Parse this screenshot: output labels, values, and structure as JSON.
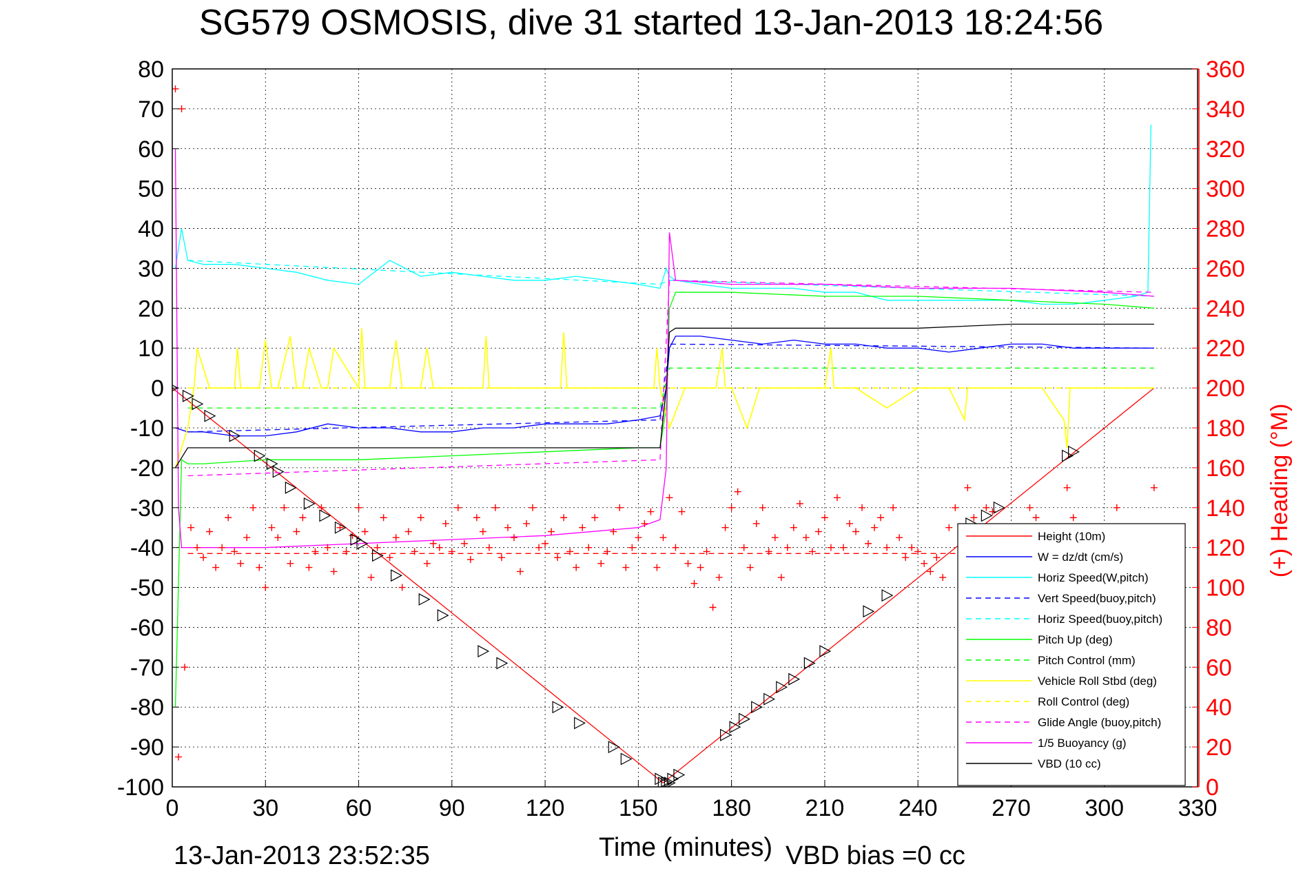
{
  "chart_data": {
    "type": "line",
    "title": "SG579 OSMOSIS, dive 31 started 13-Jan-2013 18:24:56",
    "xlabel": "Time (minutes)",
    "ylabel": "",
    "y2label": "(+) Heading (°M)",
    "footer_left": "13-Jan-2013 23:52:35",
    "footer_right": "VBD bias =0 cc",
    "xlim": [
      0,
      330
    ],
    "ylim": [
      -100,
      80
    ],
    "y2lim": [
      0,
      360
    ],
    "grid": true,
    "legend_position": "lower-right",
    "x_ticks": [
      "0",
      "30",
      "60",
      "90",
      "120",
      "150",
      "180",
      "210",
      "240",
      "270",
      "300",
      "330"
    ],
    "y_ticks": [
      "80",
      "70",
      "60",
      "50",
      "40",
      "30",
      "20",
      "10",
      "0",
      "-10",
      "-20",
      "-30",
      "-40",
      "-50",
      "-60",
      "-70",
      "-80",
      "-90",
      "-100"
    ],
    "y2_ticks": [
      "360",
      "340",
      "320",
      "300",
      "280",
      "260",
      "240",
      "220",
      "200",
      "180",
      "160",
      "140",
      "120",
      "100",
      "80",
      "60",
      "40",
      "20",
      "0"
    ],
    "series": [
      {
        "name": "Height (10m)",
        "color": "#ff0000",
        "style": "solid",
        "axis": "left",
        "x": [
          0,
          158,
          316
        ],
        "y": [
          0,
          -99,
          0
        ]
      },
      {
        "name": "W = dz/dt (cm/s)",
        "color": "#0000ff",
        "style": "solid",
        "axis": "left",
        "x": [
          1,
          5,
          10,
          20,
          30,
          40,
          50,
          60,
          70,
          80,
          90,
          100,
          110,
          120,
          130,
          140,
          150,
          157,
          159,
          160,
          162,
          170,
          180,
          190,
          200,
          210,
          220,
          230,
          240,
          250,
          260,
          270,
          280,
          290,
          300,
          310,
          316
        ],
        "y": [
          -10,
          -11,
          -11,
          -12,
          -12,
          -11,
          -9,
          -10,
          -10,
          -11,
          -11,
          -10,
          -10,
          -9,
          -9,
          -9,
          -8,
          -7,
          0,
          10,
          13,
          13,
          12,
          11,
          12,
          11,
          11,
          10,
          10,
          9,
          10,
          11,
          11,
          10,
          10,
          10,
          10
        ]
      },
      {
        "name": "Horiz Speed(W,pitch)",
        "color": "#00ffff",
        "style": "solid",
        "axis": "left",
        "x": [
          1,
          3,
          5,
          10,
          20,
          30,
          40,
          50,
          60,
          70,
          80,
          90,
          100,
          110,
          120,
          130,
          140,
          150,
          157,
          159,
          160,
          162,
          170,
          180,
          190,
          200,
          210,
          220,
          230,
          240,
          250,
          260,
          270,
          280,
          290,
          300,
          310,
          314,
          315
        ],
        "y": [
          30,
          40,
          32,
          31,
          31,
          30,
          29,
          27,
          26,
          32,
          28,
          29,
          28,
          27,
          27,
          28,
          27,
          26,
          25,
          30,
          28,
          27,
          26,
          25,
          25,
          25,
          24,
          24,
          22,
          22,
          22,
          22,
          22,
          21,
          21,
          22,
          23,
          24,
          66
        ]
      },
      {
        "name": "Vert Speed(buoy,pitch)",
        "color": "#0000ff",
        "style": "dashed",
        "axis": "left",
        "x": [
          5,
          157,
          160,
          316
        ],
        "y": [
          -11,
          -8,
          11,
          10
        ]
      },
      {
        "name": "Horiz Speed(buoy,pitch)",
        "color": "#00ffff",
        "style": "dashed",
        "axis": "left",
        "x": [
          5,
          157,
          160,
          316
        ],
        "y": [
          32,
          26,
          27,
          23
        ]
      },
      {
        "name": "Pitch Up (deg)",
        "color": "#00ff00",
        "style": "solid",
        "axis": "left",
        "x": [
          1,
          3,
          5,
          10,
          30,
          60,
          90,
          120,
          150,
          157,
          159,
          160,
          162,
          180,
          210,
          240,
          270,
          300,
          316
        ],
        "y": [
          -80,
          -18,
          -19,
          -19,
          -18,
          -18,
          -17,
          -16,
          -15,
          -15,
          -5,
          20,
          24,
          24,
          23,
          23,
          22,
          21,
          20
        ]
      },
      {
        "name": "Pitch Control (mm)",
        "color": "#00ff00",
        "style": "dashed",
        "axis": "left",
        "x": [
          5,
          157,
          160,
          316
        ],
        "y": [
          -5,
          -5,
          5,
          5
        ]
      },
      {
        "name": "Vehicle Roll Stbd (deg)",
        "color": "#ffff00",
        "style": "solid",
        "axis": "left",
        "x": [
          1,
          5,
          7,
          8,
          12,
          20,
          21,
          22,
          28,
          30,
          32,
          34,
          38,
          40,
          42,
          44,
          48,
          50,
          52,
          60,
          61,
          62,
          70,
          72,
          74,
          80,
          82,
          84,
          90,
          100,
          101,
          102,
          110,
          120,
          125,
          126,
          127,
          130,
          140,
          150,
          155,
          156,
          157,
          160,
          165,
          170,
          175,
          177,
          178,
          180,
          185,
          189,
          190,
          200,
          205,
          210,
          212,
          213,
          220,
          230,
          240,
          250,
          255,
          256,
          260,
          270,
          280,
          287,
          288,
          289,
          300,
          310,
          316
        ],
        "y": [
          -20,
          -10,
          0,
          10,
          0,
          0,
          10,
          0,
          0,
          12,
          0,
          0,
          13,
          0,
          0,
          10,
          0,
          0,
          10,
          0,
          15,
          0,
          0,
          12,
          0,
          0,
          10,
          0,
          0,
          0,
          13,
          0,
          0,
          0,
          0,
          14,
          0,
          0,
          0,
          0,
          0,
          10,
          0,
          -10,
          0,
          0,
          0,
          10,
          0,
          0,
          -10,
          0,
          0,
          0,
          0,
          0,
          10,
          0,
          0,
          -5,
          0,
          0,
          -8,
          0,
          0,
          0,
          0,
          -8,
          -15,
          0,
          0,
          0,
          0
        ]
      },
      {
        "name": "Roll Control (deg)",
        "color": "#ffff00",
        "style": "dashed",
        "axis": "left",
        "x": [
          5,
          316
        ],
        "y": [
          0,
          0
        ]
      },
      {
        "name": "Glide Angle (buoy,pitch)",
        "color": "#ff00ff",
        "style": "dashed",
        "axis": "left",
        "x": [
          5,
          157,
          160,
          316
        ],
        "y": [
          -22,
          -18,
          27,
          24
        ]
      },
      {
        "name": "1/5 Buoyancy (g)",
        "color": "#ff00ff",
        "style": "solid",
        "axis": "left",
        "x": [
          1,
          2,
          3,
          5,
          30,
          60,
          90,
          120,
          150,
          157,
          159,
          160,
          162,
          180,
          210,
          240,
          270,
          300,
          316
        ],
        "y": [
          60,
          -30,
          -40,
          -40,
          -40,
          -39,
          -38,
          -37,
          -35,
          -33,
          -20,
          39,
          27,
          26,
          26,
          25,
          25,
          24,
          23
        ]
      },
      {
        "name": "VBD (10 cc)",
        "color": "#000000",
        "style": "solid",
        "axis": "left",
        "x": [
          1,
          5,
          157,
          159,
          160,
          162,
          200,
          240,
          270,
          316
        ],
        "y": [
          -20,
          -15,
          -15,
          0,
          14,
          15,
          15,
          15,
          16,
          16
        ]
      },
      {
        "name": "Heading (+)",
        "color": "#ff0000",
        "style": "markers-plus",
        "axis": "right",
        "legend": false,
        "x": [
          1,
          2,
          3,
          4,
          6,
          8,
          10,
          12,
          14,
          16,
          18,
          20,
          22,
          24,
          26,
          28,
          30,
          32,
          34,
          36,
          38,
          40,
          42,
          44,
          46,
          48,
          50,
          52,
          54,
          56,
          58,
          60,
          62,
          64,
          66,
          68,
          70,
          72,
          74,
          76,
          78,
          80,
          82,
          84,
          86,
          88,
          90,
          92,
          94,
          96,
          98,
          100,
          102,
          104,
          106,
          108,
          110,
          112,
          114,
          116,
          118,
          120,
          122,
          124,
          126,
          128,
          130,
          132,
          134,
          136,
          138,
          140,
          142,
          144,
          146,
          148,
          150,
          152,
          154,
          156,
          158,
          160,
          162,
          164,
          166,
          168,
          170,
          172,
          174,
          176,
          178,
          180,
          182,
          184,
          186,
          188,
          190,
          192,
          194,
          196,
          198,
          200,
          202,
          204,
          206,
          208,
          210,
          212,
          214,
          216,
          218,
          220,
          222,
          224,
          226,
          228,
          230,
          232,
          234,
          236,
          238,
          240,
          242,
          244,
          246,
          248,
          250,
          252,
          254,
          256,
          258,
          260,
          262,
          264,
          266,
          268,
          270,
          272,
          274,
          276,
          278,
          280,
          282,
          284,
          286,
          288,
          290,
          292,
          294,
          296,
          298,
          300,
          302,
          304,
          306,
          308,
          310,
          312,
          314,
          316
        ],
        "y": [
          350,
          15,
          340,
          60,
          130,
          120,
          115,
          128,
          110,
          120,
          135,
          118,
          112,
          125,
          140,
          110,
          100,
          130,
          125,
          140,
          112,
          128,
          135,
          110,
          118,
          140,
          120,
          108,
          130,
          118,
          126,
          140,
          128,
          105,
          120,
          135,
          115,
          125,
          100,
          128,
          118,
          135,
          112,
          122,
          120,
          132,
          118,
          140,
          122,
          114,
          135,
          128,
          120,
          140,
          115,
          130,
          125,
          108,
          132,
          140,
          120,
          122,
          128,
          115,
          135,
          118,
          110,
          130,
          120,
          135,
          112,
          118,
          128,
          140,
          110,
          120,
          125,
          132,
          138,
          110,
          125,
          145,
          120,
          138,
          112,
          102,
          110,
          118,
          90,
          105,
          130,
          140,
          148,
          120,
          110,
          132,
          140,
          118,
          125,
          105,
          120,
          130,
          142,
          125,
          118,
          128,
          135,
          120,
          145,
          120,
          132,
          128,
          140,
          122,
          130,
          135,
          120,
          140,
          125,
          115,
          120,
          118,
          112,
          108,
          115,
          105,
          130,
          140,
          118,
          150,
          135,
          125,
          140,
          138,
          120,
          130,
          115,
          120,
          128,
          140,
          135,
          118,
          122,
          110,
          130,
          150,
          135,
          122,
          128,
          118,
          115,
          125,
          130,
          140,
          120,
          122,
          118,
          125,
          128,
          150
        ]
      },
      {
        "name": "Heading (-)",
        "color": "#ff0000",
        "style": "dashed",
        "axis": "right",
        "legend": false,
        "x": [
          5,
          316
        ],
        "y": [
          117,
          117
        ]
      },
      {
        "name": "Sample markers",
        "color": "#000000",
        "style": "markers-triangle",
        "axis": "left",
        "legend": false,
        "x": [
          0,
          5,
          8,
          12,
          20,
          28,
          32,
          34,
          38,
          44,
          49,
          54,
          59,
          61,
          66,
          72,
          81,
          87,
          100,
          106,
          124,
          131,
          142,
          146,
          157,
          158,
          159,
          160,
          161,
          163,
          178,
          181,
          184,
          188,
          192,
          196,
          200,
          205,
          210,
          224,
          230,
          257,
          262,
          266,
          288,
          290
        ],
        "y": [
          0,
          -2,
          -4,
          -7,
          -12,
          -17,
          -19,
          -21,
          -25,
          -29,
          -32,
          -35,
          -38,
          -39,
          -42,
          -47,
          -53,
          -57,
          -66,
          -69,
          -80,
          -84,
          -90,
          -93,
          -98,
          -99,
          -99,
          -99,
          -98,
          -97,
          -87,
          -85,
          -83,
          -80,
          -78,
          -75,
          -73,
          -69,
          -66,
          -56,
          -52,
          -34,
          -32,
          -30,
          -17,
          -16
        ]
      }
    ]
  }
}
